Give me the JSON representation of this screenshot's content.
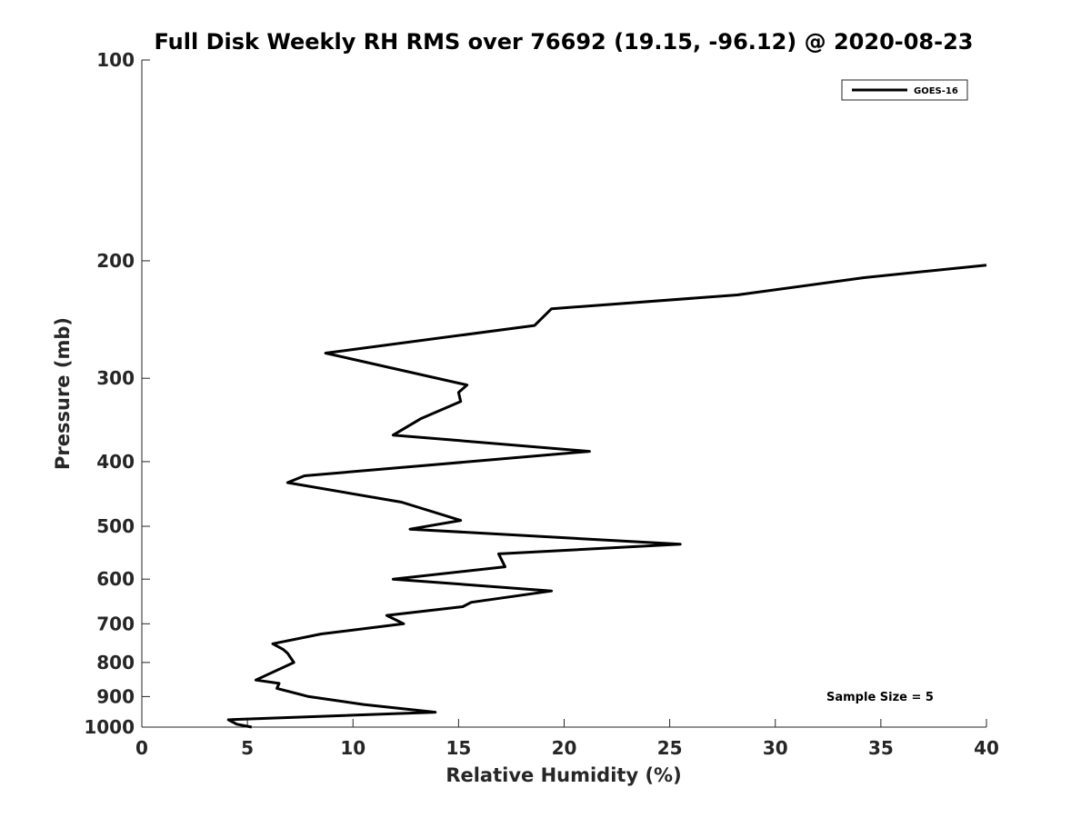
{
  "chart_data": {
    "type": "line",
    "title": "Full Disk Weekly RH RMS over 76692 (19.15, -96.12) @ 2020-08-23",
    "xlabel": "Relative Humidity (%)",
    "ylabel": "Pressure (mb)",
    "xlim": [
      0,
      40
    ],
    "ylim": [
      1000,
      100
    ],
    "y_scale": "log",
    "y_reversed": true,
    "x_ticks": [
      "0",
      "5",
      "10",
      "15",
      "20",
      "25",
      "30",
      "35",
      "40"
    ],
    "y_ticks": [
      "100",
      "200",
      "300",
      "400",
      "500",
      "600",
      "700",
      "800",
      "900",
      "1000"
    ],
    "legend_position": "top-right",
    "grid": false,
    "annotation": "Sample Size = 5",
    "series": [
      {
        "name": "GOES-16",
        "color": "#000000",
        "points": [
          [
            5.2,
            1000
          ],
          [
            4.5,
            990
          ],
          [
            4.1,
            975
          ],
          [
            13.9,
            950
          ],
          [
            10.5,
            925
          ],
          [
            7.9,
            900
          ],
          [
            6.4,
            875
          ],
          [
            6.5,
            860
          ],
          [
            5.4,
            850
          ],
          [
            7.2,
            800
          ],
          [
            6.9,
            775
          ],
          [
            6.7,
            765
          ],
          [
            6.2,
            750
          ],
          [
            8.5,
            725
          ],
          [
            12.4,
            700
          ],
          [
            11.6,
            680
          ],
          [
            15.2,
            660
          ],
          [
            15.6,
            650
          ],
          [
            19.4,
            625
          ],
          [
            11.9,
            600
          ],
          [
            17.2,
            575
          ],
          [
            16.9,
            550
          ],
          [
            25.5,
            532
          ],
          [
            12.7,
            505
          ],
          [
            15.1,
            490
          ],
          [
            12.3,
            460
          ],
          [
            6.9,
            430
          ],
          [
            7.7,
            420
          ],
          [
            21.2,
            386
          ],
          [
            11.9,
            365
          ],
          [
            13.2,
            345
          ],
          [
            15.1,
            325
          ],
          [
            15.0,
            315
          ],
          [
            15.4,
            307
          ],
          [
            8.7,
            275
          ],
          [
            18.6,
            250
          ],
          [
            19.4,
            236
          ],
          [
            28.2,
            225
          ],
          [
            34.2,
            212
          ],
          [
            40.0,
            203
          ]
        ]
      }
    ]
  }
}
